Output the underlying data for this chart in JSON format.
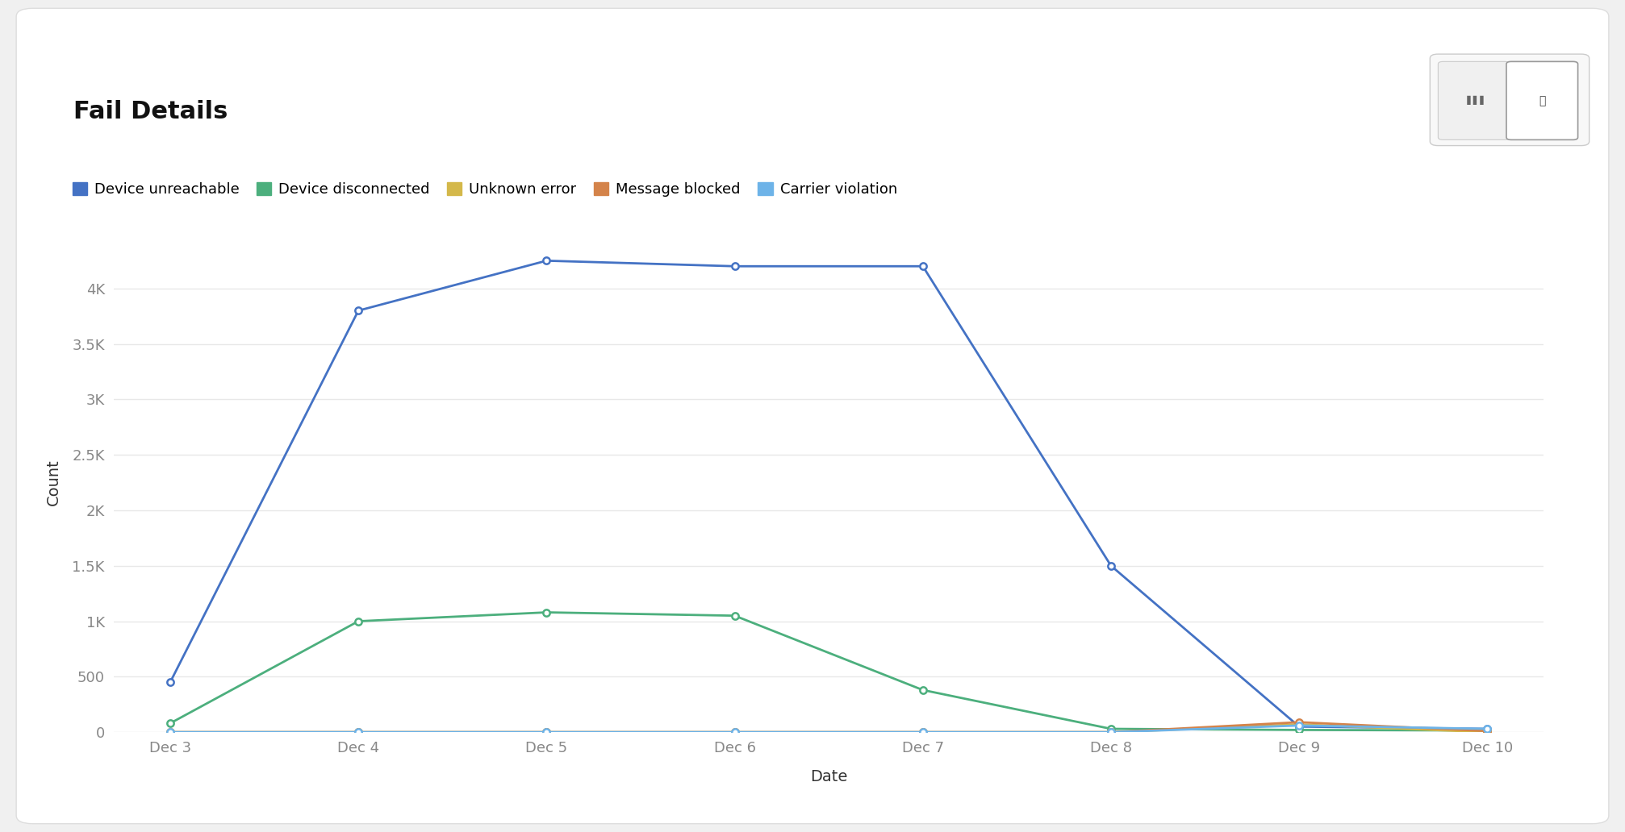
{
  "title": "Fail Details",
  "xlabel": "Date",
  "ylabel": "Count",
  "background_color": "#f0f0f0",
  "card_color": "#ffffff",
  "plot_background": "#ffffff",
  "x_labels": [
    "Dec 3",
    "Dec 4",
    "Dec 5",
    "Dec 6",
    "Dec 7",
    "Dec 8",
    "Dec 9",
    "Dec 10"
  ],
  "series": [
    {
      "label": "Device unreachable",
      "color": "#4472c4",
      "values": [
        450,
        3800,
        4250,
        4200,
        4200,
        1500,
        50,
        30
      ],
      "marker": "o",
      "marker_face": "#ffffff",
      "linewidth": 2.0
    },
    {
      "label": "Device disconnected",
      "color": "#4caf7d",
      "values": [
        80,
        1000,
        1080,
        1050,
        380,
        30,
        20,
        15
      ],
      "marker": "o",
      "marker_face": "#ffffff",
      "linewidth": 2.0
    },
    {
      "label": "Unknown error",
      "color": "#d4b84a",
      "values": [
        0,
        0,
        0,
        0,
        0,
        0,
        70,
        0
      ],
      "marker": "o",
      "marker_face": "#ffffff",
      "linewidth": 2.0
    },
    {
      "label": "Message blocked",
      "color": "#d4834a",
      "values": [
        0,
        0,
        0,
        0,
        0,
        0,
        90,
        10
      ],
      "marker": "o",
      "marker_face": "#ffffff",
      "linewidth": 2.0
    },
    {
      "label": "Carrier violation",
      "color": "#6db3e8",
      "values": [
        0,
        0,
        0,
        0,
        0,
        0,
        60,
        30
      ],
      "marker": "o",
      "marker_face": "#ffffff",
      "linewidth": 2.0
    }
  ],
  "ylim": [
    0,
    4500
  ],
  "yticks": [
    0,
    500,
    1000,
    1500,
    2000,
    2500,
    3000,
    3500,
    4000
  ],
  "ytick_labels": [
    "0",
    "500",
    "1K",
    "1.5K",
    "2K",
    "2.5K",
    "3K",
    "3.5K",
    "4K"
  ],
  "grid_color": "#e8e8e8",
  "tick_color": "#888888",
  "title_fontsize": 22,
  "label_fontsize": 14,
  "legend_fontsize": 13,
  "tick_fontsize": 13
}
